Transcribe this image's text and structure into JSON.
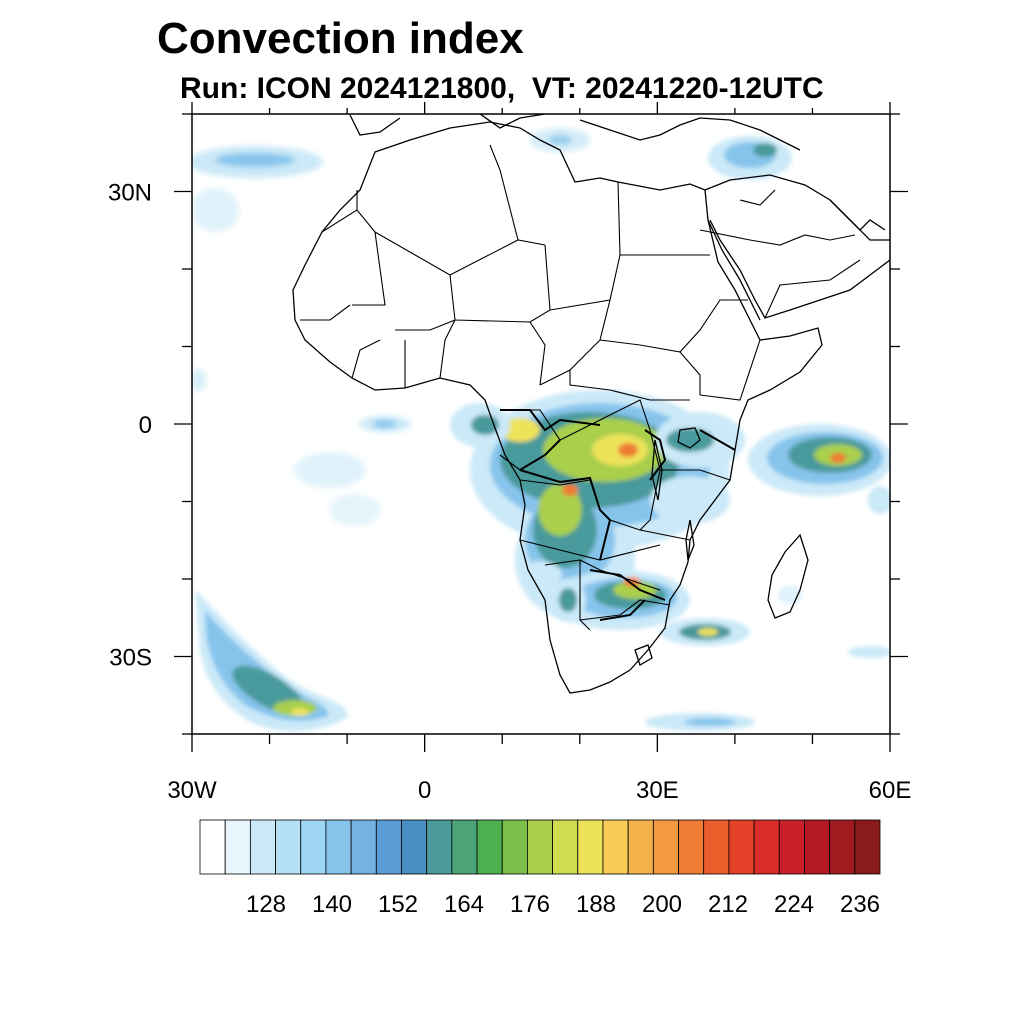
{
  "title": "Convection index",
  "subtitle": "Run: ICON 2024121800,  VT: 20241220-12UTC",
  "map": {
    "lat_labels": [
      "30N",
      "0",
      "30S"
    ],
    "lon_labels": [
      "30W",
      "0",
      "30E",
      "60E"
    ],
    "lon_range": [
      -30,
      60
    ],
    "lat_range": [
      -40,
      40
    ],
    "land_color": "#ffffff",
    "ocean_color": "#ffffff",
    "coast_color": "#000000"
  },
  "colorbar": {
    "labels": [
      "128",
      "140",
      "152",
      "164",
      "176",
      "188",
      "200",
      "212",
      "224",
      "236"
    ],
    "colors": [
      "#ffffff",
      "#e8f5fc",
      "#cbe9f8",
      "#b6e0f6",
      "#9fd6f3",
      "#87c4ec",
      "#74b2e3",
      "#5a9bd3",
      "#4a8fc2",
      "#4a9a9c",
      "#4ba377",
      "#4fb04f",
      "#7bbf4a",
      "#a9cf4b",
      "#cfdc4f",
      "#ede35a",
      "#f7cb55",
      "#f5b14b",
      "#f39a3f",
      "#ef7c34",
      "#ea5e2c",
      "#e34228",
      "#d92c28",
      "#c81f29",
      "#b51a24",
      "#a01b20",
      "#8a1a1c"
    ]
  },
  "field_colors": {
    "low": "#cbe9f8",
    "mid_low": "#87c4ec",
    "mid": "#4a9a9c",
    "mid_high": "#a9cf4b",
    "high": "#ede35a",
    "very_high": "#ef7c34",
    "extreme": "#d92c28"
  }
}
